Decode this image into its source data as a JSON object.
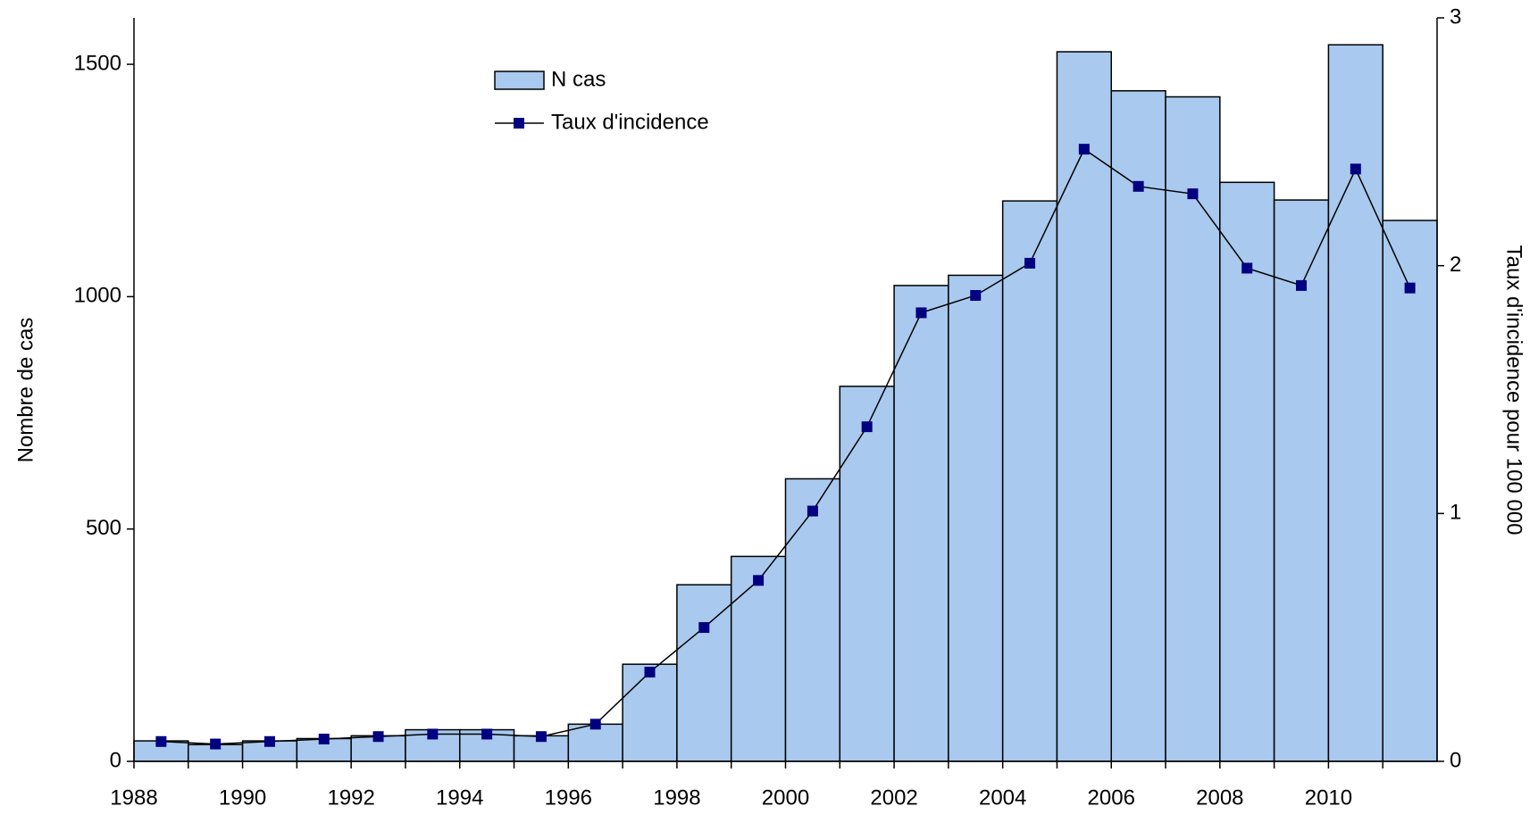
{
  "chart_data": {
    "type": "bar-line",
    "categories": [
      "1988",
      null,
      "1990",
      null,
      "1992",
      null,
      "1994",
      null,
      "1996",
      null,
      "1998",
      null,
      "2000",
      null,
      "2002",
      null,
      "2004",
      null,
      "2006",
      null,
      "2008",
      null,
      "2010",
      null
    ],
    "series": [
      {
        "name": "N cas",
        "type": "bar",
        "color": "#a9c9ee",
        "values": [
          44,
          36,
          44,
          49,
          55,
          68,
          68,
          55,
          80,
          209,
          380,
          441,
          608,
          807,
          1024,
          1046,
          1206,
          1527,
          1443,
          1430,
          1246,
          1208,
          1542,
          1164
        ]
      },
      {
        "name": "Taux d'incidence",
        "type": "line",
        "axis": "y2",
        "color": "#000080",
        "values": [
          0.08,
          0.07,
          0.08,
          0.09,
          0.1,
          0.11,
          0.11,
          0.1,
          0.15,
          0.36,
          0.54,
          0.73,
          1.01,
          1.35,
          1.81,
          1.88,
          2.01,
          2.47,
          2.32,
          2.29,
          1.99,
          1.92,
          2.39,
          1.91
        ]
      }
    ],
    "y_label": "Nombre de cas",
    "y2_label": "Taux d'incidence pour 100 000",
    "ylim": [
      0,
      1600
    ],
    "yticks": [
      0,
      500,
      1000,
      1500
    ],
    "y2lim": [
      0,
      3
    ],
    "y2ticks": [
      0,
      1,
      2,
      3
    ]
  }
}
